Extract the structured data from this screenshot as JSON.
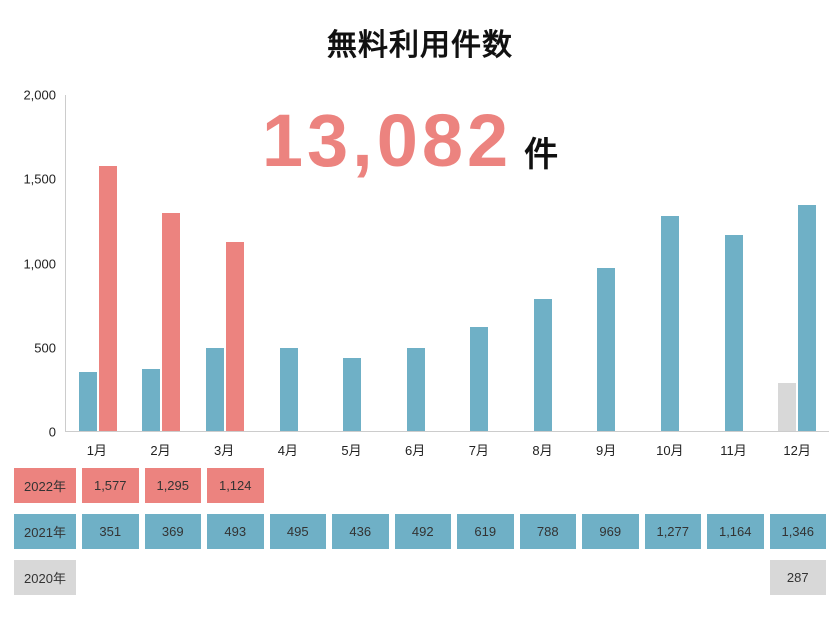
{
  "title": {
    "text": "無料利用件数"
  },
  "total": {
    "value": "13,082",
    "unit": "件"
  },
  "colors": {
    "y2022": "#ec837f",
    "y2021": "#6fb0c6",
    "y2020": "#d8d8d8"
  },
  "chart_data": {
    "type": "bar",
    "title": "無料利用件数",
    "categories": [
      "1月",
      "2月",
      "3月",
      "4月",
      "5月",
      "6月",
      "7月",
      "8月",
      "9月",
      "10月",
      "11月",
      "12月"
    ],
    "series": [
      {
        "name": "2020年",
        "color": "#d8d8d8",
        "values": [
          null,
          null,
          null,
          null,
          null,
          null,
          null,
          null,
          null,
          null,
          null,
          287
        ]
      },
      {
        "name": "2021年",
        "color": "#6fb0c6",
        "values": [
          351,
          369,
          493,
          495,
          436,
          492,
          619,
          788,
          969,
          1277,
          1164,
          1346
        ]
      },
      {
        "name": "2022年",
        "color": "#ec837f",
        "values": [
          1577,
          1295,
          1124,
          null,
          null,
          null,
          null,
          null,
          null,
          null,
          null,
          null
        ]
      }
    ],
    "ylim": [
      0,
      2000
    ],
    "yticks": [
      {
        "label": "0",
        "value": 0
      },
      {
        "label": "500",
        "value": 500
      },
      {
        "label": "1,000",
        "value": 1000
      },
      {
        "label": "1,500",
        "value": 1500
      },
      {
        "label": "2,000",
        "value": 2000
      }
    ],
    "grid": false,
    "legend_position": "none",
    "annotation": "13,082 件"
  },
  "table": {
    "rows": [
      {
        "label": "2022年",
        "color": "#ec837f",
        "values": [
          "1,577",
          "1,295",
          "1,124",
          "",
          "",
          "",
          "",
          "",
          "",
          "",
          "",
          ""
        ]
      },
      {
        "label": "2021年",
        "color": "#6fb0c6",
        "values": [
          "351",
          "369",
          "493",
          "495",
          "436",
          "492",
          "619",
          "788",
          "969",
          "1,277",
          "1,164",
          "1,346"
        ]
      },
      {
        "label": "2020年",
        "color": "#d8d8d8",
        "values": [
          "",
          "",
          "",
          "",
          "",
          "",
          "",
          "",
          "",
          "",
          "",
          "287"
        ]
      }
    ]
  }
}
